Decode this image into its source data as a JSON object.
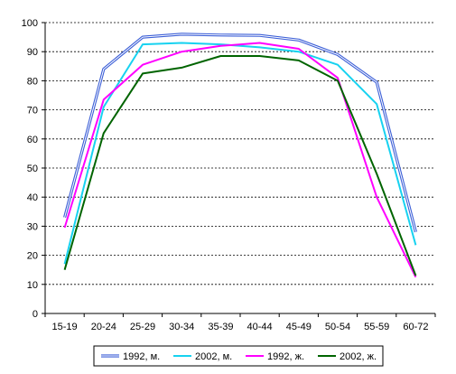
{
  "chart_data": {
    "type": "line",
    "categories": [
      "15-19",
      "20-24",
      "25-29",
      "30-34",
      "35-39",
      "40-44",
      "45-49",
      "50-54",
      "55-59",
      "60-72"
    ],
    "ylim": [
      0,
      100
    ],
    "yticks": [
      "0",
      "10",
      "20",
      "30",
      "40",
      "50",
      "60",
      "70",
      "80",
      "90",
      "100"
    ],
    "grid": "horizontal dashed",
    "legend_placement": "bottom",
    "series": [
      {
        "name": "1992, м.",
        "color": "#3c5fd7",
        "style": "double",
        "values": [
          33,
          84,
          95,
          96,
          95.7,
          95.6,
          94,
          89,
          79.5,
          28
        ]
      },
      {
        "name": "2002, м.",
        "color": "#17d2f0",
        "style": "solid",
        "values": [
          17,
          71,
          92.5,
          93,
          92.5,
          91.5,
          90,
          85.5,
          72,
          23.5
        ]
      },
      {
        "name": "1992, ж.",
        "color": "#ff00ff",
        "style": "solid",
        "values": [
          29.5,
          73.5,
          85.5,
          90,
          92,
          93,
          91,
          81,
          40,
          12.5
        ]
      },
      {
        "name": "2002, ж.",
        "color": "#006400",
        "style": "solid",
        "values": [
          15,
          62,
          82.5,
          84.5,
          88.5,
          88.5,
          87,
          80,
          48,
          13
        ]
      }
    ]
  }
}
